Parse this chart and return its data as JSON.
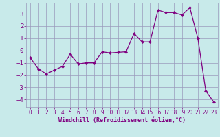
{
  "x": [
    0,
    1,
    2,
    3,
    4,
    5,
    6,
    7,
    8,
    9,
    10,
    11,
    12,
    13,
    14,
    15,
    16,
    17,
    18,
    19,
    20,
    21,
    22,
    23
  ],
  "y": [
    -0.6,
    -1.5,
    -1.9,
    -1.6,
    -1.3,
    -0.3,
    -1.1,
    -1.0,
    -1.0,
    -0.1,
    -0.2,
    -0.15,
    -0.1,
    1.4,
    0.7,
    0.7,
    3.3,
    3.1,
    3.1,
    2.9,
    3.5,
    1.0,
    -3.3,
    -4.2
  ],
  "line_color": "#800080",
  "marker": "D",
  "markersize": 2,
  "bg_color": "#c8eaea",
  "grid_color": "#9999bb",
  "xlabel": "Windchill (Refroidissement éolien,°C)",
  "ylim": [
    -4.6,
    3.9
  ],
  "xlim": [
    -0.5,
    23.5
  ],
  "yticks": [
    -4,
    -3,
    -2,
    -1,
    0,
    1,
    2,
    3
  ],
  "xticks": [
    0,
    1,
    2,
    3,
    4,
    5,
    6,
    7,
    8,
    9,
    10,
    11,
    12,
    13,
    14,
    15,
    16,
    17,
    18,
    19,
    20,
    21,
    22,
    23
  ],
  "tick_color": "#800080",
  "label_color": "#800080"
}
